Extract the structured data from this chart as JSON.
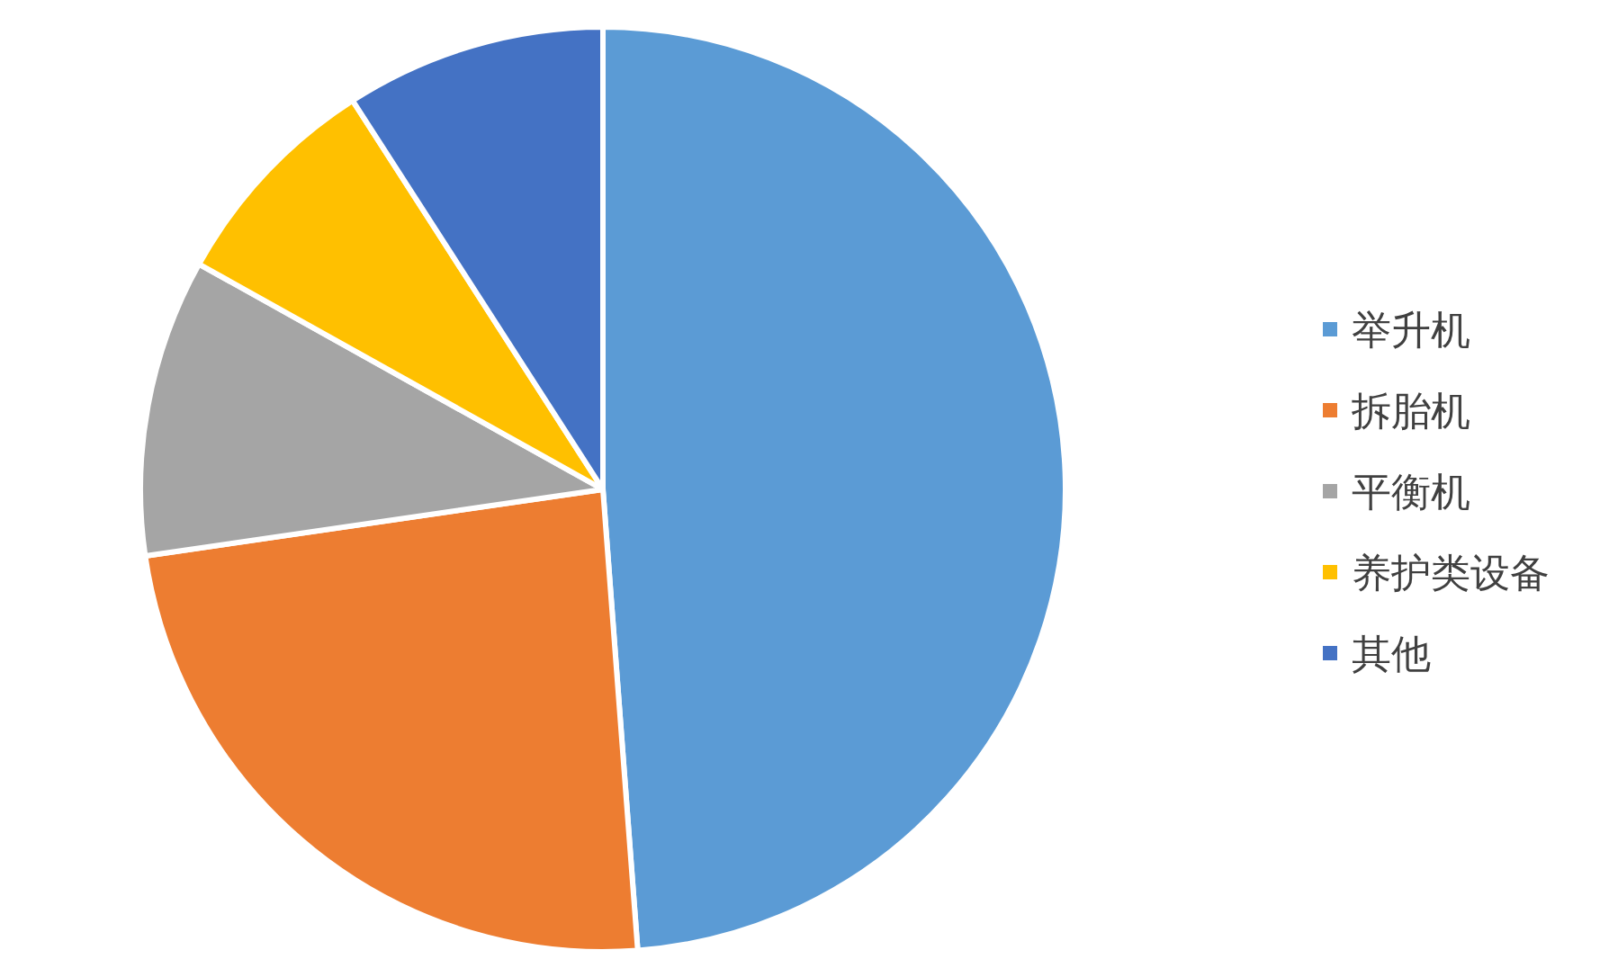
{
  "chart_data": {
    "type": "pie",
    "categories": [
      "举升机",
      "拆胎机",
      "平衡机",
      "养护类设备",
      "其他"
    ],
    "values": [
      48.8,
      23.9,
      10.4,
      7.8,
      9.1
    ],
    "colors": [
      "#5b9bd5",
      "#ed7d31",
      "#a5a5a5",
      "#ffc000",
      "#4472c4"
    ],
    "legend": "right"
  }
}
